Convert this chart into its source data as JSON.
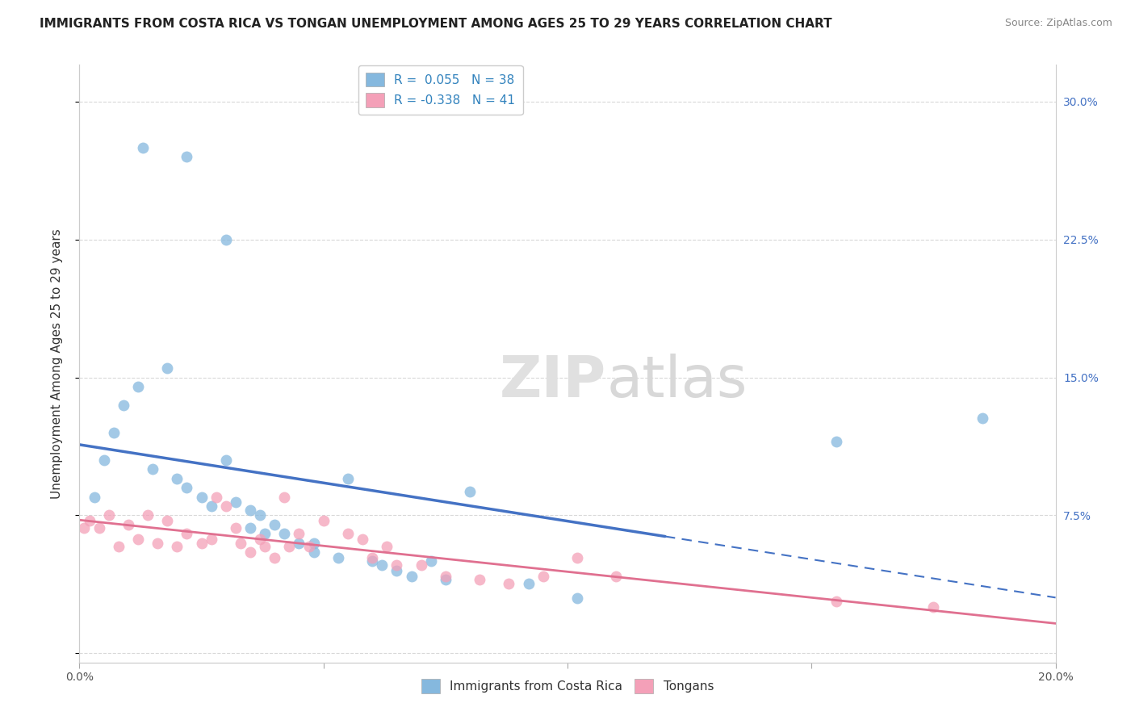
{
  "title": "IMMIGRANTS FROM COSTA RICA VS TONGAN UNEMPLOYMENT AMONG AGES 25 TO 29 YEARS CORRELATION CHART",
  "source": "Source: ZipAtlas.com",
  "ylabel": "Unemployment Among Ages 25 to 29 years",
  "xlim": [
    0.0,
    0.2
  ],
  "ylim": [
    -0.005,
    0.32
  ],
  "xticks": [
    0.0,
    0.05,
    0.1,
    0.15,
    0.2
  ],
  "xtick_labels": [
    "0.0%",
    "",
    "",
    "",
    "20.0%"
  ],
  "yticks": [
    0.0,
    0.075,
    0.15,
    0.225,
    0.3
  ],
  "ytick_labels_right": [
    "",
    "7.5%",
    "15.0%",
    "22.5%",
    "30.0%"
  ],
  "background_color": "#ffffff",
  "grid_color": "#d8d8d8",
  "blue_color": "#85b8de",
  "pink_color": "#f4a0b8",
  "blue_line_color": "#4472c4",
  "pink_line_color": "#e07090",
  "blue_scatter_x": [
    0.013,
    0.022,
    0.03,
    0.003,
    0.005,
    0.007,
    0.009,
    0.012,
    0.015,
    0.018,
    0.02,
    0.022,
    0.025,
    0.027,
    0.03,
    0.032,
    0.035,
    0.037,
    0.04,
    0.042,
    0.035,
    0.038,
    0.045,
    0.048,
    0.048,
    0.053,
    0.055,
    0.06,
    0.062,
    0.065,
    0.068,
    0.072,
    0.075,
    0.08,
    0.092,
    0.102,
    0.155,
    0.185
  ],
  "blue_scatter_y": [
    0.275,
    0.27,
    0.225,
    0.085,
    0.105,
    0.12,
    0.135,
    0.145,
    0.1,
    0.155,
    0.095,
    0.09,
    0.085,
    0.08,
    0.105,
    0.082,
    0.078,
    0.075,
    0.07,
    0.065,
    0.068,
    0.065,
    0.06,
    0.055,
    0.06,
    0.052,
    0.095,
    0.05,
    0.048,
    0.045,
    0.042,
    0.05,
    0.04,
    0.088,
    0.038,
    0.03,
    0.115,
    0.128
  ],
  "pink_scatter_x": [
    0.001,
    0.002,
    0.004,
    0.006,
    0.008,
    0.01,
    0.012,
    0.014,
    0.016,
    0.018,
    0.02,
    0.022,
    0.025,
    0.027,
    0.028,
    0.03,
    0.032,
    0.033,
    0.035,
    0.037,
    0.038,
    0.04,
    0.042,
    0.043,
    0.045,
    0.047,
    0.05,
    0.055,
    0.058,
    0.06,
    0.063,
    0.065,
    0.07,
    0.075,
    0.082,
    0.088,
    0.095,
    0.102,
    0.11,
    0.155,
    0.175
  ],
  "pink_scatter_y": [
    0.068,
    0.072,
    0.068,
    0.075,
    0.058,
    0.07,
    0.062,
    0.075,
    0.06,
    0.072,
    0.058,
    0.065,
    0.06,
    0.062,
    0.085,
    0.08,
    0.068,
    0.06,
    0.055,
    0.062,
    0.058,
    0.052,
    0.085,
    0.058,
    0.065,
    0.058,
    0.072,
    0.065,
    0.062,
    0.052,
    0.058,
    0.048,
    0.048,
    0.042,
    0.04,
    0.038,
    0.042,
    0.052,
    0.042,
    0.028,
    0.025
  ],
  "title_fontsize": 11,
  "source_fontsize": 9,
  "axis_label_fontsize": 11,
  "tick_fontsize": 10,
  "legend_fontsize": 11,
  "marker_size": 100
}
